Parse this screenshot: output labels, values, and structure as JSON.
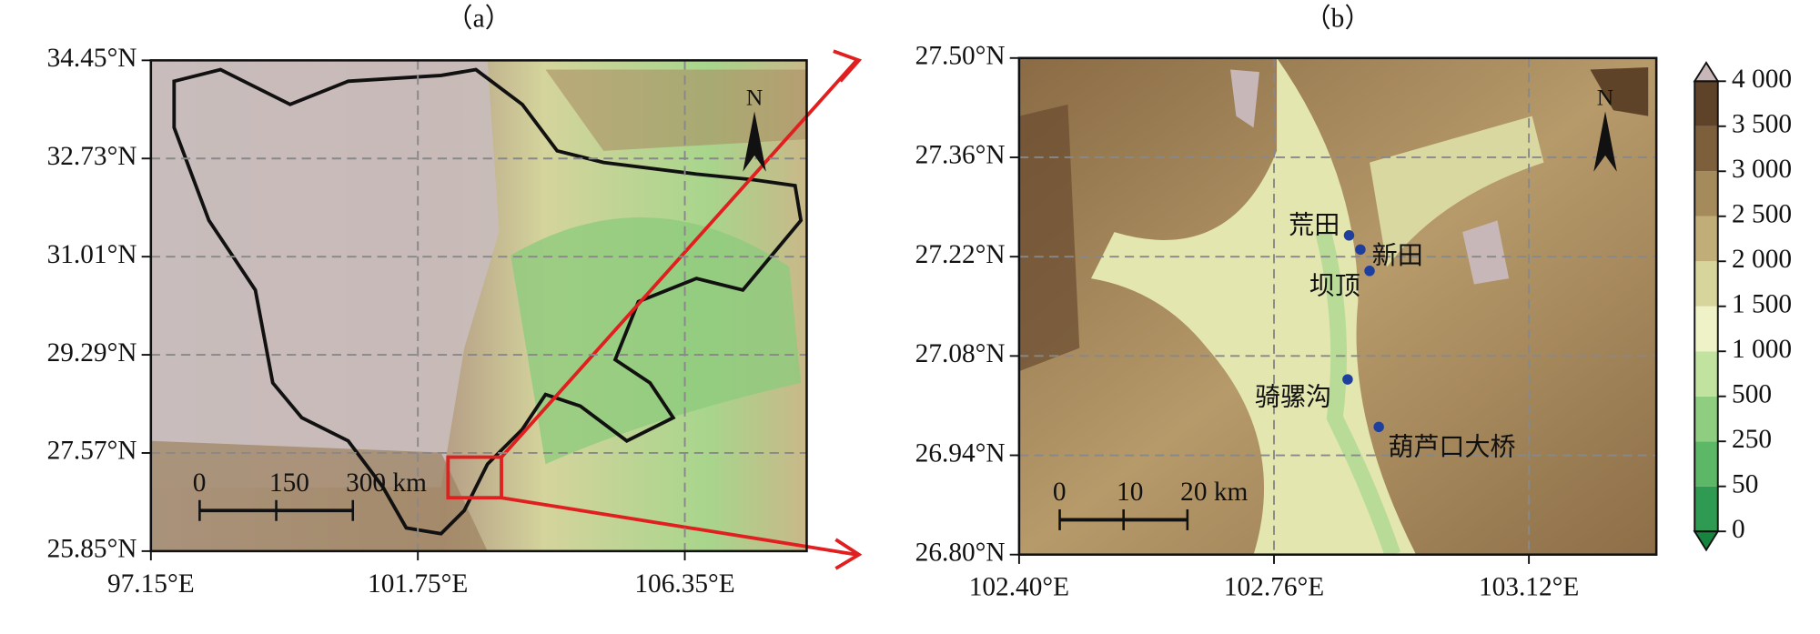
{
  "panels": [
    {
      "title": "（a）",
      "xlim": [
        97.15,
        108.45
      ],
      "ylim": [
        25.85,
        34.45
      ],
      "xticks": [
        {
          "value": 97.15,
          "label": "97.15°E"
        },
        {
          "value": 101.75,
          "label": "101.75°E"
        },
        {
          "value": 106.35,
          "label": "106.35°E"
        }
      ],
      "yticks": [
        {
          "value": 34.45,
          "label": "34.45°N"
        },
        {
          "value": 32.73,
          "label": "32.73°N"
        },
        {
          "value": 31.01,
          "label": "31.01°N"
        },
        {
          "value": 29.29,
          "label": "29.29°N"
        },
        {
          "value": 27.57,
          "label": "27.57°N"
        },
        {
          "value": 25.85,
          "label": "25.85°N"
        }
      ],
      "scale_bar": [
        "0",
        "150",
        "300 km"
      ],
      "north": "N"
    },
    {
      "title": "（b）",
      "xlim": [
        102.4,
        103.3
      ],
      "ylim": [
        26.8,
        27.5
      ],
      "xticks": [
        {
          "value": 102.4,
          "label": "102.40°E"
        },
        {
          "value": 102.76,
          "label": "102.76°E"
        },
        {
          "value": 103.12,
          "label": "103.12°E"
        }
      ],
      "yticks": [
        {
          "value": 27.5,
          "label": "27.50°N"
        },
        {
          "value": 27.36,
          "label": "27.36°N"
        },
        {
          "value": 27.22,
          "label": "27.22°N"
        },
        {
          "value": 27.08,
          "label": "27.08°N"
        },
        {
          "value": 26.94,
          "label": "26.94°N"
        },
        {
          "value": 26.8,
          "label": "26.80°N"
        }
      ],
      "scale_bar": [
        "0",
        "10",
        "20 km"
      ],
      "north": "N",
      "stations": [
        {
          "name": "荒田",
          "lon": 102.866,
          "lat": 27.25
        },
        {
          "name": "新田",
          "lon": 102.882,
          "lat": 27.23
        },
        {
          "name": "坝顶",
          "lon": 102.895,
          "lat": 27.2
        },
        {
          "name": "骑骡沟",
          "lon": 102.864,
          "lat": 27.047
        },
        {
          "name": "葫芦口大桥",
          "lon": 102.908,
          "lat": 26.98
        }
      ]
    }
  ],
  "colorbar": {
    "ticks": [
      0,
      50,
      250,
      500,
      {
        "value": 1000,
        "label": "1 000"
      },
      {
        "value": 1500,
        "label": "1 500"
      },
      {
        "value": 2000,
        "label": "2 000"
      },
      {
        "value": 2500,
        "label": "2 500"
      },
      {
        "value": 3000,
        "label": "3 000"
      },
      {
        "value": 3500,
        "label": "3 500"
      },
      {
        "value": 4000,
        "label": "4 000"
      }
    ],
    "colors": [
      "#2f9a52",
      "#5cb767",
      "#8fcd80",
      "#c2e3a0",
      "#eef2c6",
      "#d8d59c",
      "#c1ad78",
      "#a58a5b",
      "#7e5f3c",
      "#5e4329"
    ],
    "under": "#17843f",
    "over": "#c7b7b8"
  }
}
